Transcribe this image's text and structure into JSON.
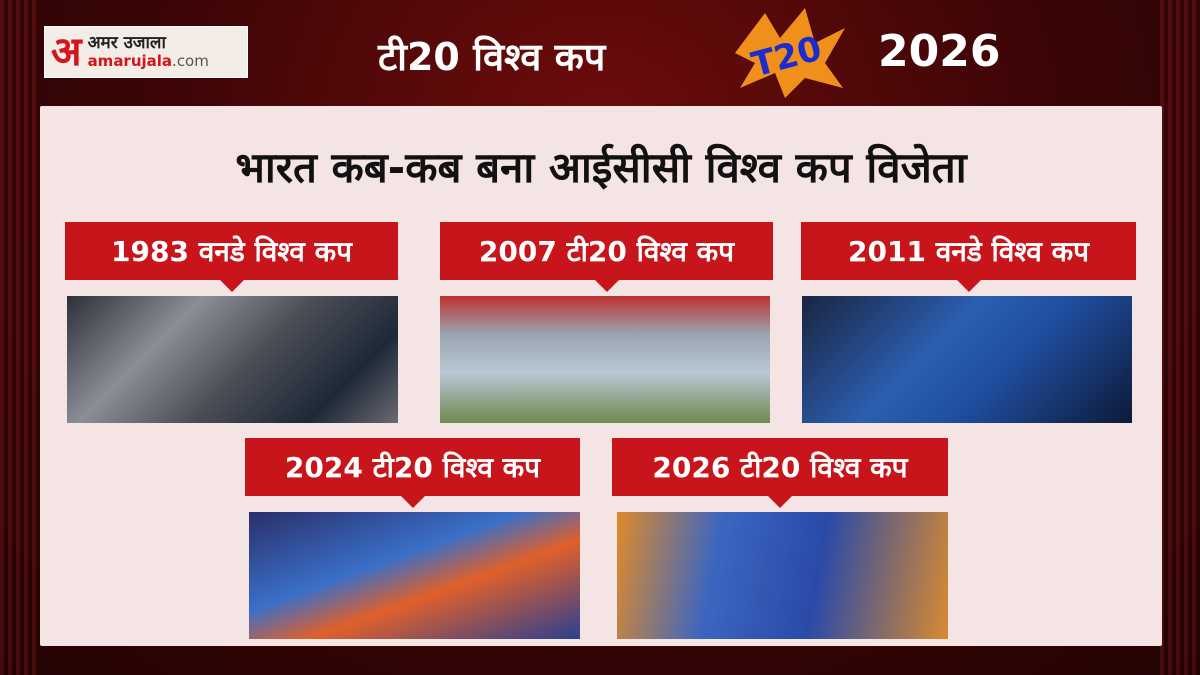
{
  "header": {
    "logo": {
      "glyph": "अ",
      "name_hi": "अमर उजाला",
      "domain_brand": "amarujala",
      ".com": ".com"
    },
    "title": "टी20 विश्व कप",
    "event_logo": "T20",
    "year": "2026"
  },
  "main_title": "भारत कब-कब बना आईसीसी विश्व कप विजेता",
  "wins": [
    {
      "label": "1983 वनडे विश्व कप"
    },
    {
      "label": "2007 टी20 विश्व कप"
    },
    {
      "label": "2011 वनडे विश्व कप"
    },
    {
      "label": "2024 टी20 विश्व कप"
    },
    {
      "label": "2026 टी20 विश्व कप"
    }
  ],
  "colors": {
    "accent": "#c8151b",
    "background": "#3a0506",
    "panel": "#f4e4e3"
  }
}
